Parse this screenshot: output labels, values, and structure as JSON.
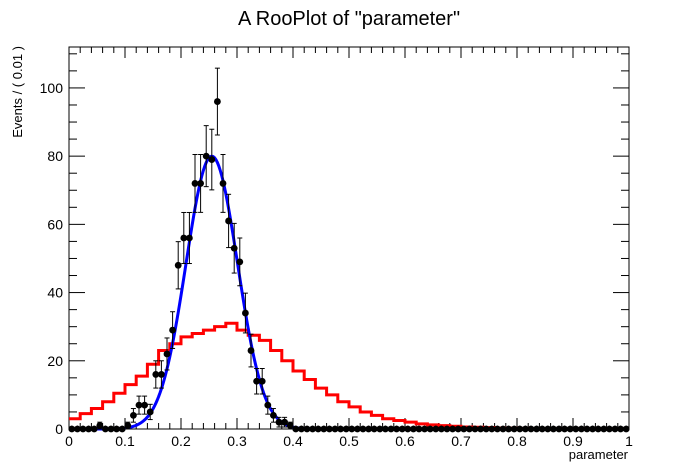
{
  "chart_data": {
    "type": "line",
    "title": "A RooPlot of \"parameter\"",
    "xlabel": "parameter",
    "ylabel": "Events / ( 0.01 )",
    "xlim": [
      0,
      1
    ],
    "ylim": [
      0,
      112
    ],
    "x_ticks": [
      "0",
      "0.1",
      "0.2",
      "0.3",
      "0.4",
      "0.5",
      "0.6",
      "0.7",
      "0.8",
      "0.9",
      "1"
    ],
    "y_ticks": [
      "0",
      "20",
      "40",
      "60",
      "80",
      "100"
    ],
    "grid": false,
    "legend": "none",
    "series": [
      {
        "kind": "points_with_errors",
        "color": "#000000",
        "x": [
          0.005,
          0.015,
          0.025,
          0.035,
          0.045,
          0.055,
          0.065,
          0.075,
          0.085,
          0.095,
          0.105,
          0.115,
          0.125,
          0.135,
          0.145,
          0.155,
          0.165,
          0.175,
          0.185,
          0.195,
          0.205,
          0.215,
          0.225,
          0.235,
          0.245,
          0.255,
          0.265,
          0.275,
          0.285,
          0.295,
          0.305,
          0.315,
          0.325,
          0.335,
          0.345,
          0.355,
          0.365,
          0.375,
          0.385,
          0.395,
          0.405,
          0.415,
          0.425,
          0.435,
          0.445,
          0.455,
          0.465,
          0.475,
          0.485,
          0.495,
          0.505,
          0.515,
          0.525,
          0.535,
          0.545,
          0.555,
          0.565,
          0.575,
          0.585,
          0.595,
          0.605,
          0.615,
          0.625,
          0.635,
          0.645,
          0.655,
          0.665,
          0.675,
          0.685,
          0.695,
          0.705,
          0.715,
          0.725,
          0.735,
          0.745,
          0.755,
          0.765,
          0.775,
          0.785,
          0.795,
          0.805,
          0.815,
          0.825,
          0.835,
          0.845,
          0.855,
          0.865,
          0.875,
          0.885,
          0.895,
          0.905,
          0.915,
          0.925,
          0.935,
          0.945,
          0.955,
          0.965,
          0.975,
          0.985,
          0.995
        ],
        "y": [
          0,
          0,
          0,
          0,
          0,
          1,
          0,
          0,
          0,
          0,
          1,
          4,
          7,
          7,
          5,
          16,
          16,
          22,
          29,
          48,
          56,
          56,
          72,
          72,
          80,
          79,
          96,
          72,
          61,
          53,
          49,
          34,
          23,
          14,
          14,
          7,
          4,
          2,
          2,
          1,
          0,
          0,
          0,
          0,
          0,
          0,
          0,
          0,
          0,
          0,
          0,
          0,
          0,
          0,
          0,
          0,
          0,
          0,
          0,
          0,
          0,
          0,
          0,
          0,
          0,
          0,
          0,
          0,
          0,
          0,
          0,
          0,
          0,
          0,
          0,
          0,
          0,
          0,
          0,
          0,
          0,
          0,
          0,
          0,
          0,
          0,
          0,
          0,
          0,
          0,
          0,
          0,
          0,
          0,
          0,
          0,
          0,
          0,
          0,
          0
        ]
      },
      {
        "kind": "curve",
        "color": "#0000ff",
        "model": "gaussian",
        "mean": 0.255,
        "sigma": 0.046,
        "amplitude": 80
      },
      {
        "kind": "step_histogram",
        "color": "#ff0000",
        "x_edges_step": 0.02,
        "values": [
          3,
          4.5,
          6,
          8,
          10.5,
          13,
          15.5,
          19,
          23,
          25,
          27,
          28,
          29,
          30,
          31,
          29,
          27.5,
          26,
          23,
          20,
          17,
          14.5,
          12,
          10,
          8,
          6.5,
          5,
          4,
          3,
          2.5,
          2,
          1.5,
          1.2,
          1,
          0.8,
          0.6,
          0.5,
          0.4,
          0.3,
          0.25,
          0.2,
          0.15,
          0.1,
          0.1,
          0.1,
          0.1,
          0.1,
          0.1,
          0.1,
          0.1
        ]
      }
    ]
  }
}
